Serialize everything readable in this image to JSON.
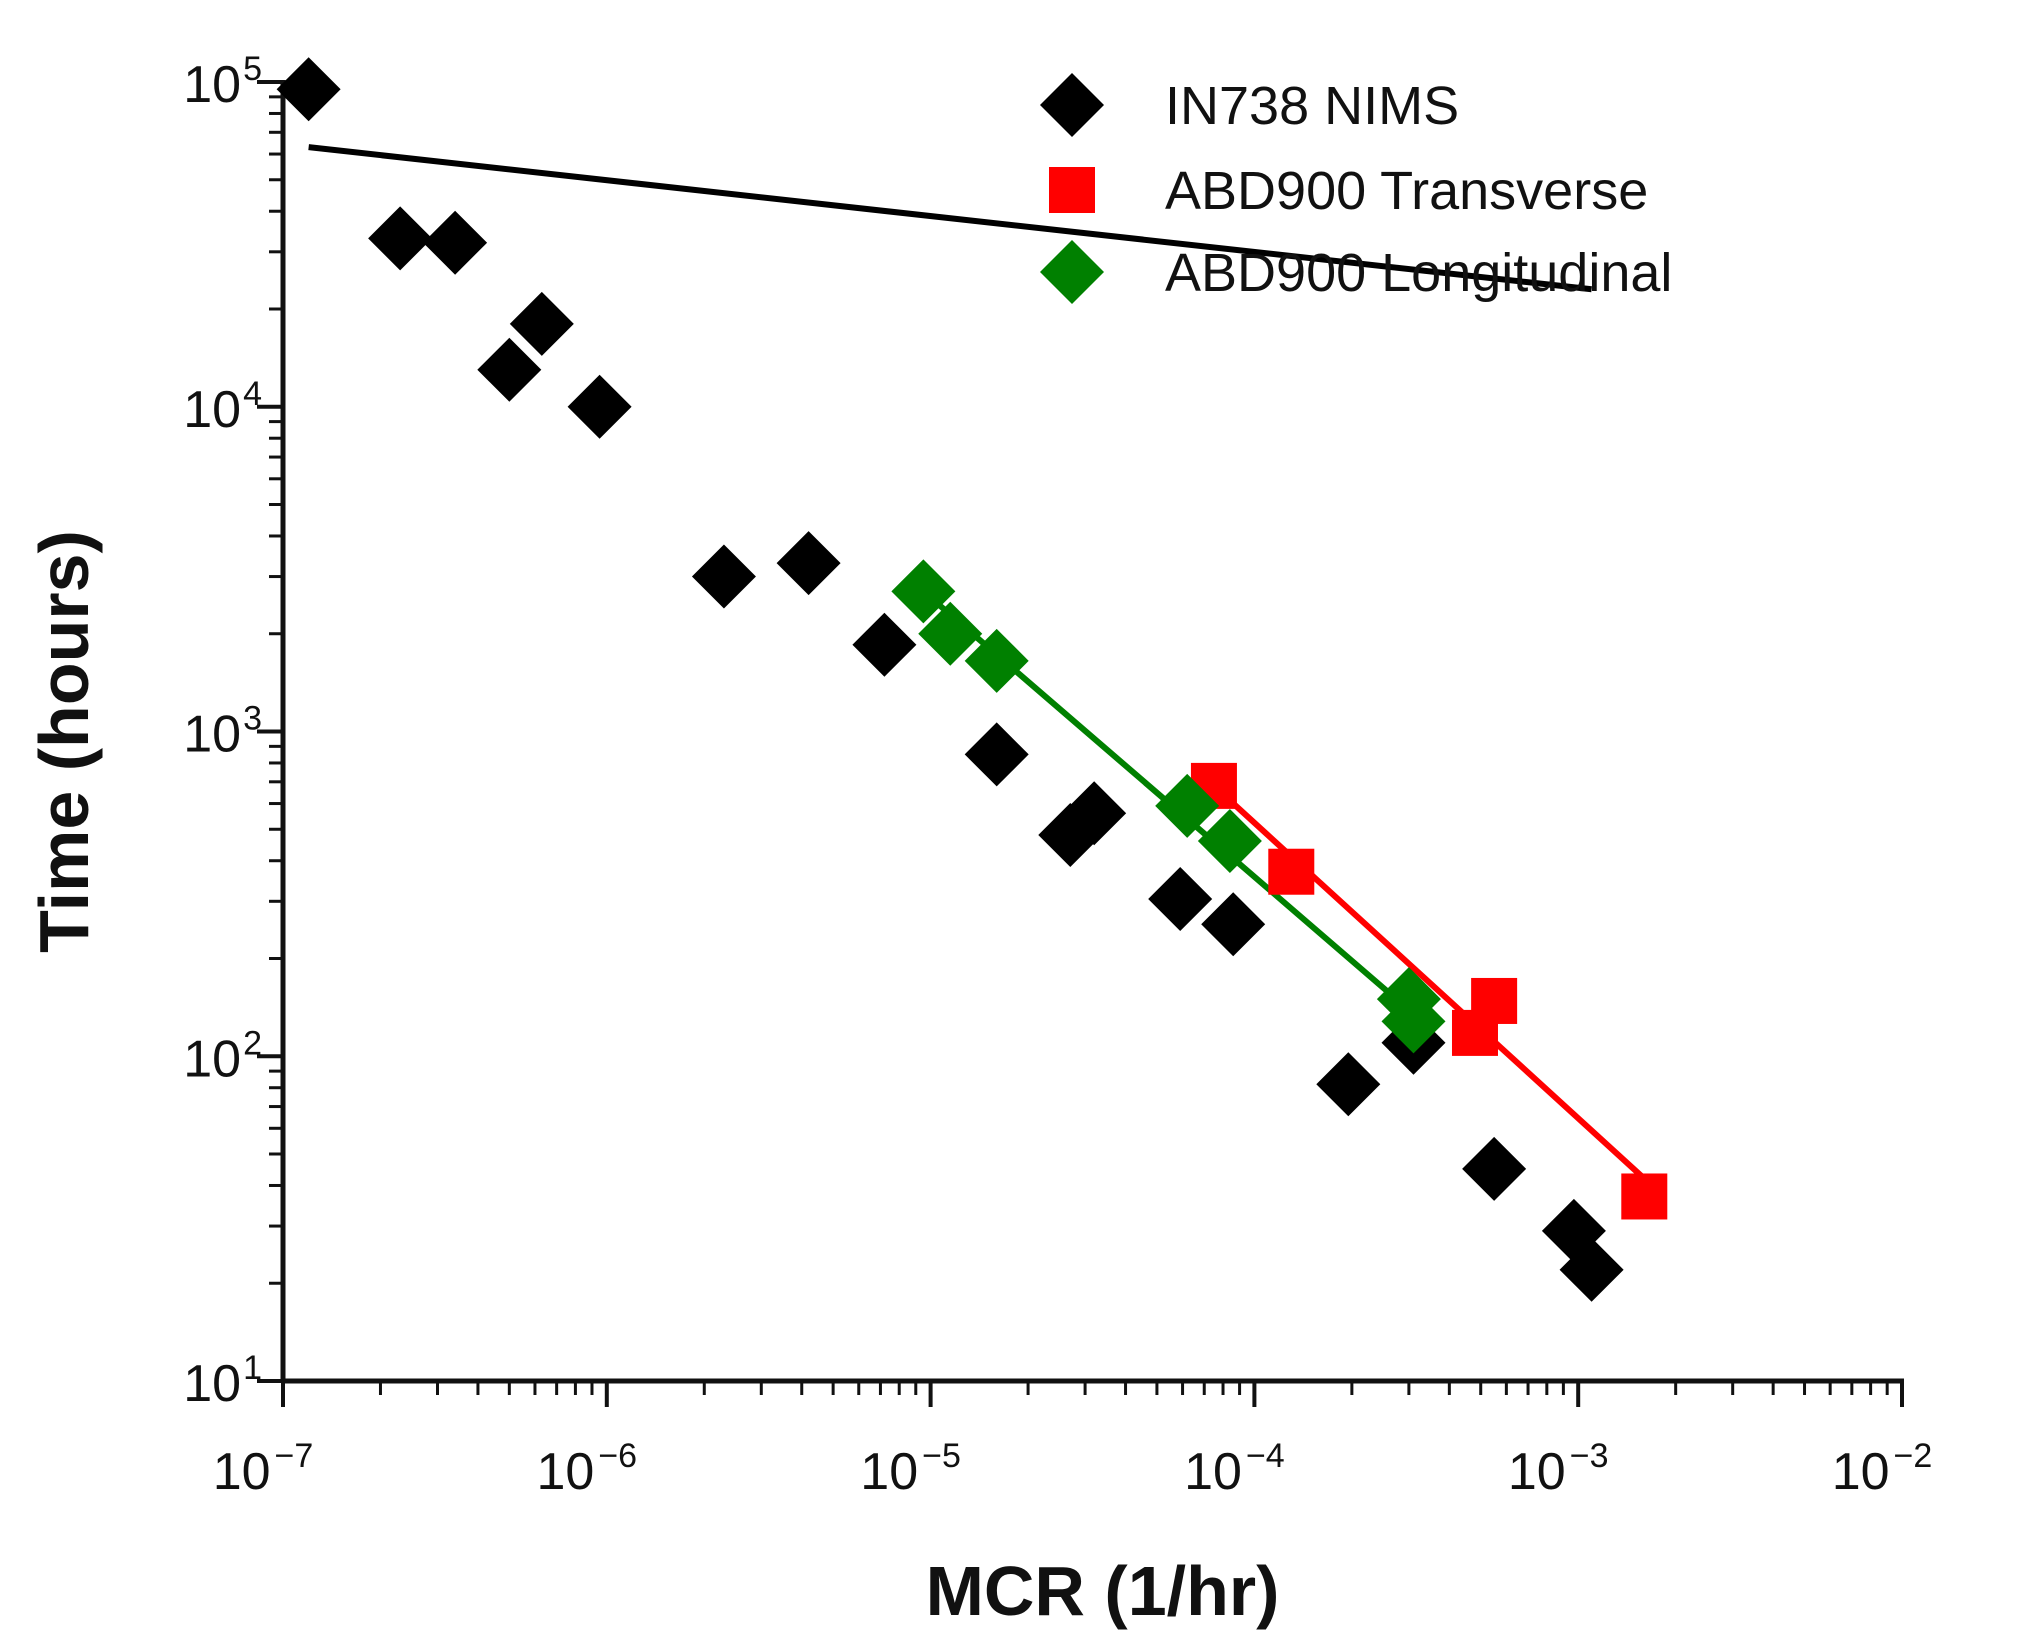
{
  "chart_data": {
    "type": "scatter",
    "xlabel": "MCR (1/hr)",
    "ylabel": "Time (hours)",
    "xscale": "log",
    "yscale": "log",
    "xlim": [
      1e-07,
      0.01
    ],
    "ylim": [
      10,
      100000
    ],
    "x_ticks": [
      {
        "value": 1e-07,
        "base": "10",
        "exp": "−7"
      },
      {
        "value": 1e-06,
        "base": "10",
        "exp": "−6"
      },
      {
        "value": 1e-05,
        "base": "10",
        "exp": "−5"
      },
      {
        "value": 0.0001,
        "base": "10",
        "exp": "−4"
      },
      {
        "value": 0.001,
        "base": "10",
        "exp": "−3"
      },
      {
        "value": 0.01,
        "base": "10",
        "exp": "−2"
      }
    ],
    "y_ticks": [
      {
        "value": 10,
        "base": "10",
        "exp": "1"
      },
      {
        "value": 100,
        "base": "10",
        "exp": "2"
      },
      {
        "value": 1000,
        "base": "10",
        "exp": "3"
      },
      {
        "value": 10000,
        "base": "10",
        "exp": "4"
      },
      {
        "value": 100000,
        "base": "10",
        "exp": "5"
      }
    ],
    "grid": false,
    "legend_position": "top-right",
    "series": [
      {
        "name": "IN738 NIMS",
        "color": "#000000",
        "marker": "diamond",
        "points": [
          [
            1.2e-07,
            95000
          ],
          [
            2.3e-07,
            33000
          ],
          [
            3.4e-07,
            32000
          ],
          [
            5e-07,
            13000
          ],
          [
            6.3e-07,
            18000
          ],
          [
            9.5e-07,
            10000
          ],
          [
            2.3e-06,
            3000
          ],
          [
            4.2e-06,
            3300
          ],
          [
            7.2e-06,
            1850
          ],
          [
            1.6e-05,
            850
          ],
          [
            2.7e-05,
            480
          ],
          [
            3.2e-05,
            560
          ],
          [
            5.9e-05,
            305
          ],
          [
            8.6e-05,
            255
          ],
          [
            0.000195,
            82
          ],
          [
            0.00031,
            110
          ],
          [
            0.00055,
            45
          ],
          [
            0.00097,
            29
          ],
          [
            0.0011,
            22
          ]
        ],
        "fit": [
          [
            1.2e-07,
            63000
          ],
          [
            0.0011,
            23000
          ]
        ]
      },
      {
        "name": "ABD900 Transverse",
        "color": "#ff0000",
        "marker": "square",
        "points": [
          [
            7.5e-05,
            680
          ],
          [
            0.00013,
            370
          ],
          [
            0.00048,
            118
          ],
          [
            0.00055,
            148
          ],
          [
            0.0016,
            37
          ]
        ],
        "fit": [
          [
            7.5e-05,
            680
          ],
          [
            0.0016,
            42
          ]
        ]
      },
      {
        "name": "ABD900 Longitudinal",
        "color": "#008000",
        "marker": "diamond",
        "points": [
          [
            9.5e-06,
            2700
          ],
          [
            1.15e-05,
            2000
          ],
          [
            1.6e-05,
            1650
          ],
          [
            6.2e-05,
            590
          ],
          [
            8.4e-05,
            460
          ],
          [
            0.0003,
            150
          ],
          [
            0.00031,
            128
          ]
        ],
        "fit": [
          [
            9.5e-06,
            2700
          ],
          [
            0.00031,
            135
          ]
        ]
      }
    ]
  }
}
